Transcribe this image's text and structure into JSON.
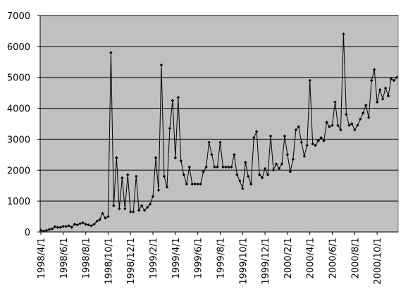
{
  "chart_data": {
    "type": "line",
    "color": "#000000",
    "plot_background": "#c0c0c0",
    "grid": true,
    "ylim": [
      0,
      7000
    ],
    "yticks": [
      0,
      1000,
      2000,
      3000,
      4000,
      5000,
      6000,
      7000
    ],
    "categories": [
      "1998/4/1",
      null,
      null,
      null,
      null,
      null,
      null,
      null,
      "1998/6/1",
      null,
      null,
      null,
      null,
      null,
      null,
      null,
      "1998/8/1",
      null,
      null,
      null,
      null,
      null,
      null,
      null,
      "1998/10/1",
      null,
      null,
      null,
      null,
      null,
      null,
      null,
      "1998/12/1",
      null,
      null,
      null,
      null,
      null,
      null,
      null,
      "1999/2/1",
      null,
      null,
      null,
      null,
      null,
      null,
      null,
      "1999/4/1",
      null,
      null,
      null,
      null,
      null,
      null,
      null,
      "1999/6/1",
      null,
      null,
      null,
      null,
      null,
      null,
      null,
      "1999/8/1",
      null,
      null,
      null,
      null,
      null,
      null,
      null,
      "1999/10/1",
      null,
      null,
      null,
      null,
      null,
      null,
      null,
      "1999/12/1",
      null,
      null,
      null,
      null,
      null,
      null,
      null,
      "2000/2/1",
      null,
      null,
      null,
      null,
      null,
      null,
      null,
      "2000/4/1",
      null,
      null,
      null,
      null,
      null,
      null,
      null,
      "2000/6/1",
      null,
      null,
      null,
      null,
      null,
      null,
      null,
      "2000/8/1",
      null,
      null,
      null,
      null,
      null,
      null,
      null,
      "2000/10/1",
      null,
      null,
      null,
      null,
      null,
      null,
      null
    ],
    "values": [
      50,
      30,
      50,
      80,
      100,
      170,
      150,
      150,
      180,
      180,
      200,
      150,
      250,
      230,
      270,
      300,
      250,
      230,
      200,
      250,
      350,
      400,
      600,
      450,
      500,
      5800,
      850,
      2400,
      750,
      1750,
      750,
      1850,
      650,
      650,
      1800,
      700,
      850,
      700,
      800,
      900,
      1150,
      2400,
      1350,
      5400,
      1800,
      1450,
      3350,
      4250,
      2400,
      4350,
      2300,
      1850,
      1550,
      2100,
      1550,
      1550,
      1550,
      1550,
      1950,
      2100,
      2900,
      2500,
      2100,
      2100,
      2900,
      2100,
      2100,
      2100,
      2100,
      2500,
      1850,
      1650,
      1400,
      2250,
      1800,
      1550,
      3050,
      3250,
      1850,
      1750,
      2050,
      1850,
      3100,
      2000,
      2200,
      2050,
      2200,
      3100,
      2500,
      1950,
      2350,
      3300,
      3400,
      2900,
      2450,
      2800,
      4900,
      2850,
      2800,
      2950,
      3050,
      2950,
      3550,
      3400,
      3450,
      4200,
      3450,
      3300,
      6400,
      3800,
      3450,
      3500,
      3300,
      3450,
      3650,
      3850,
      4100,
      3700,
      4900,
      5250,
      4200,
      4600,
      4300,
      4650,
      4400,
      4950,
      4900,
      5000
    ]
  }
}
